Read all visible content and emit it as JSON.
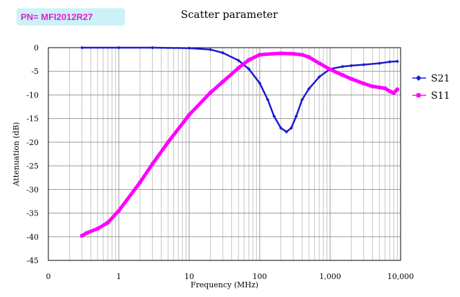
{
  "part_label": "PN= MFI2012R27",
  "chart_data": {
    "type": "line",
    "title": "Scatter parameter",
    "xlabel": "Frequency (MHz)",
    "ylabel": "Attenuation (dB)",
    "xscale": "log",
    "xlim": [
      0.1,
      10000
    ],
    "ylim": [
      -45,
      0
    ],
    "x_tick_labels": [
      "0",
      "1",
      "10",
      "100",
      "1,000",
      "10,000"
    ],
    "x_tick_values": [
      0.1,
      1,
      10,
      100,
      1000,
      10000
    ],
    "y_ticks": [
      0,
      -5,
      -10,
      -15,
      -20,
      -25,
      -30,
      -35,
      -40,
      -45
    ],
    "grid": true,
    "legend_position": "right",
    "series": [
      {
        "name": "S21",
        "color": "#1a1acc",
        "marker": "diamond",
        "x": [
          0.3,
          1,
          3,
          10,
          20,
          30,
          50,
          70,
          100,
          130,
          160,
          200,
          240,
          280,
          330,
          400,
          500,
          700,
          1000,
          1500,
          2000,
          3000,
          5000,
          7000,
          9000
        ],
        "y": [
          0,
          0,
          0,
          -0.1,
          -0.4,
          -1.1,
          -2.7,
          -4.5,
          -7.5,
          -11,
          -14.5,
          -17,
          -17.8,
          -17,
          -14.5,
          -11,
          -8.7,
          -6.2,
          -4.5,
          -4,
          -3.8,
          -3.6,
          -3.3,
          -3,
          -2.9
        ]
      },
      {
        "name": "S11",
        "color": "#ff00ff",
        "marker": "square",
        "x": [
          0.3,
          0.35,
          0.5,
          0.7,
          1,
          2,
          3,
          5,
          10,
          20,
          30,
          50,
          70,
          100,
          150,
          200,
          300,
          400,
          500,
          700,
          1000,
          1500,
          2000,
          3000,
          4000,
          5000,
          6000,
          7000,
          8000,
          9000
        ],
        "y": [
          -39.8,
          -39.2,
          -38.3,
          -37,
          -34.5,
          -28.5,
          -24.6,
          -20,
          -14.2,
          -9.5,
          -7.2,
          -4.3,
          -2.6,
          -1.5,
          -1.3,
          -1.2,
          -1.3,
          -1.5,
          -2,
          -3.3,
          -4.6,
          -5.8,
          -6.6,
          -7.6,
          -8.2,
          -8.4,
          -8.6,
          -9.2,
          -9.6,
          -8.8
        ]
      }
    ]
  }
}
